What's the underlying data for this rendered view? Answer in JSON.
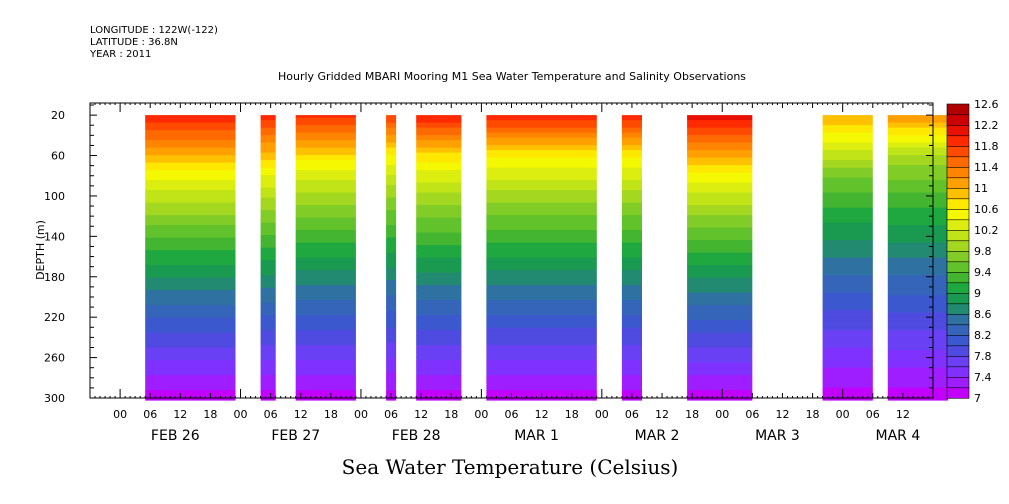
{
  "header": {
    "longitude": "LONGITUDE : 122W(-122)",
    "latitude": "LATITUDE : 36.8N",
    "year": "YEAR : 2011"
  },
  "chart_data": {
    "type": "heatmap",
    "title": "Hourly Gridded MBARI Mooring M1 Sea Water Temperature and Salinity Observations",
    "subtitle": "Sea Water Temperature (Celsius)",
    "ylabel": "DEPTH (m)",
    "xlabel": "",
    "ylim": [
      300,
      8
    ],
    "y_ticks": [
      20,
      60,
      100,
      140,
      180,
      220,
      260,
      300
    ],
    "x_hour_labels": [
      "00",
      "06",
      "12",
      "18"
    ],
    "x_days": [
      "FEB 26",
      "FEB 27",
      "FEB 28",
      "MAR  1",
      "MAR  2",
      "MAR  3",
      "MAR  4"
    ],
    "xlim_hours": [
      -6,
      162
    ],
    "colorbar": {
      "levels": [
        7,
        7.2,
        7.4,
        7.6,
        7.8,
        8,
        8.2,
        8.4,
        8.6,
        8.8,
        9,
        9.2,
        9.4,
        9.6,
        9.8,
        10,
        10.2,
        10.4,
        10.6,
        10.8,
        11,
        11.2,
        11.4,
        11.6,
        11.8,
        12,
        12.2,
        12.4,
        12.6
      ],
      "labels": [
        "7",
        "7.4",
        "7.8",
        "8.2",
        "8.6",
        "9",
        "9.4",
        "9.8",
        "10.2",
        "10.6",
        "11",
        "11.4",
        "11.8",
        "12.2",
        "12.6"
      ],
      "colors": [
        "#c200ff",
        "#9f1eff",
        "#7f32ff",
        "#6a40f5",
        "#4f4ae0",
        "#3c58cf",
        "#3565b8",
        "#2f72a2",
        "#228a70",
        "#1a9a50",
        "#20a840",
        "#44b530",
        "#62c22c",
        "#82cc28",
        "#a4d820",
        "#c0e418",
        "#dcee10",
        "#f4f800",
        "#ffe800",
        "#ffc000",
        "#ffa000",
        "#ff8400",
        "#ff6a00",
        "#ff4a00",
        "#ff2a00",
        "#e81000",
        "#cc0000",
        "#b00000"
      ]
    },
    "data_segments": [
      {
        "start_hour": 5,
        "end_hour": 23,
        "surface_temp": 12.0,
        "thermocline_depth_m": 68
      },
      {
        "start_hour": 28,
        "end_hour": 31,
        "surface_temp": 11.9,
        "thermocline_depth_m": 68
      },
      {
        "start_hour": 35,
        "end_hour": 47,
        "surface_temp": 11.9,
        "thermocline_depth_m": 62
      },
      {
        "start_hour": 53,
        "end_hour": 55,
        "surface_temp": 11.8,
        "thermocline_depth_m": 60
      },
      {
        "start_hour": 59,
        "end_hour": 68,
        "surface_temp": 12.0,
        "thermocline_depth_m": 58
      },
      {
        "start_hour": 73,
        "end_hour": 95,
        "surface_temp": 12.0,
        "thermocline_depth_m": 55
      },
      {
        "start_hour": 100,
        "end_hour": 104,
        "surface_temp": 12.0,
        "thermocline_depth_m": 55
      },
      {
        "start_hour": 113,
        "end_hour": 126,
        "surface_temp": 12.1,
        "thermocline_depth_m": 65
      },
      {
        "start_hour": 140,
        "end_hour": 150,
        "surface_temp": 11.0,
        "thermocline_depth_m": 72
      },
      {
        "start_hour": 153,
        "end_hour": 165,
        "surface_temp": 11.2,
        "thermocline_depth_m": 60
      }
    ]
  }
}
